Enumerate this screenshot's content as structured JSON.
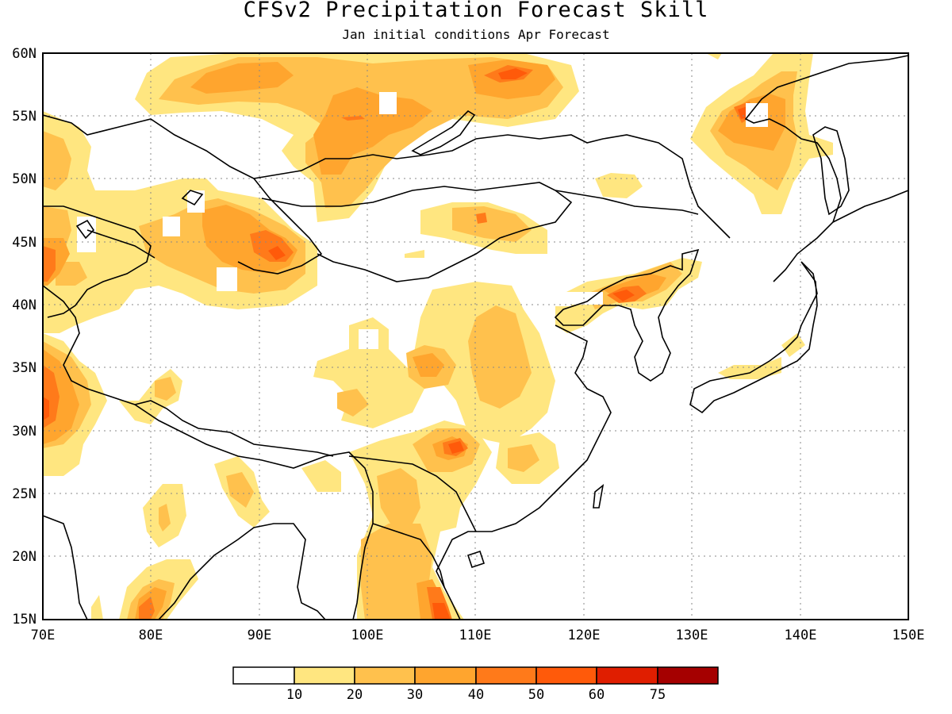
{
  "title": "CFSv2 Precipitation Forecast Skill",
  "subtitle": "Jan initial conditions  Apr Forecast",
  "axes": {
    "lon_labels": [
      "70E",
      "80E",
      "90E",
      "100E",
      "110E",
      "120E",
      "130E",
      "140E",
      "150E"
    ],
    "lat_labels": [
      "15N",
      "20N",
      "25N",
      "30N",
      "35N",
      "40N",
      "45N",
      "50N",
      "55N",
      "60N"
    ],
    "lon_range": [
      70,
      150
    ],
    "lat_range": [
      15,
      60
    ],
    "grid": "dotted"
  },
  "colorbar": {
    "levels": [
      "10",
      "20",
      "30",
      "40",
      "50",
      "60",
      "75"
    ],
    "colors": [
      "#ffffff",
      "#ffe680",
      "#ffc14d",
      "#ffa52e",
      "#ff7a1a",
      "#ff5a0a",
      "#e01e00",
      "#a50000"
    ]
  },
  "chart_data": {
    "type": "heatmap",
    "title": "CFSv2 Precipitation Forecast Skill",
    "subtitle": "Jan initial conditions  Apr Forecast",
    "variable": "precipitation forecast skill",
    "x_range": [
      70,
      150
    ],
    "y_range": [
      15,
      60
    ],
    "levels": [
      10,
      20,
      30,
      40,
      50,
      60,
      75
    ],
    "regions": [
      {
        "lon": 88,
        "lat": 57,
        "level": 20
      },
      {
        "lon": 93,
        "lat": 55,
        "level": 30
      },
      {
        "lon": 102,
        "lat": 54,
        "level": 30
      },
      {
        "lon": 111,
        "lat": 57,
        "level": 40
      },
      {
        "lon": 113,
        "lat": 58,
        "level": 50
      },
      {
        "lon": 96,
        "lat": 50,
        "level": 20
      },
      {
        "lon": 136,
        "lat": 54,
        "level": 30
      },
      {
        "lon": 136,
        "lat": 54,
        "level": 50
      },
      {
        "lon": 139,
        "lat": 49,
        "level": 20
      },
      {
        "lon": 89,
        "lat": 45,
        "level": 30
      },
      {
        "lon": 91,
        "lat": 44,
        "level": 50
      },
      {
        "lon": 74,
        "lat": 46,
        "level": 20
      },
      {
        "lon": 71,
        "lat": 43,
        "level": 40
      },
      {
        "lon": 107,
        "lat": 46,
        "level": 20
      },
      {
        "lon": 108,
        "lat": 46,
        "level": 30
      },
      {
        "lon": 123,
        "lat": 41,
        "level": 40
      },
      {
        "lon": 123,
        "lat": 40.5,
        "level": 60
      },
      {
        "lon": 113,
        "lat": 36,
        "level": 20
      },
      {
        "lon": 106,
        "lat": 35,
        "level": 30
      },
      {
        "lon": 101,
        "lat": 37,
        "level": 10
      },
      {
        "lon": 71,
        "lat": 33,
        "level": 30
      },
      {
        "lon": 71,
        "lat": 32,
        "level": 40
      },
      {
        "lon": 82,
        "lat": 32,
        "level": 20
      },
      {
        "lon": 108,
        "lat": 29,
        "level": 40
      },
      {
        "lon": 108,
        "lat": 28.5,
        "level": 50
      },
      {
        "lon": 103,
        "lat": 25,
        "level": 30
      },
      {
        "lon": 89,
        "lat": 26,
        "level": 20
      },
      {
        "lon": 102,
        "lat": 19,
        "level": 30
      },
      {
        "lon": 107,
        "lat": 16,
        "level": 50
      },
      {
        "lon": 80,
        "lat": 17,
        "level": 30
      },
      {
        "lon": 80,
        "lat": 15.5,
        "level": 50
      },
      {
        "lon": 140,
        "lat": 37,
        "level": 20
      }
    ]
  }
}
